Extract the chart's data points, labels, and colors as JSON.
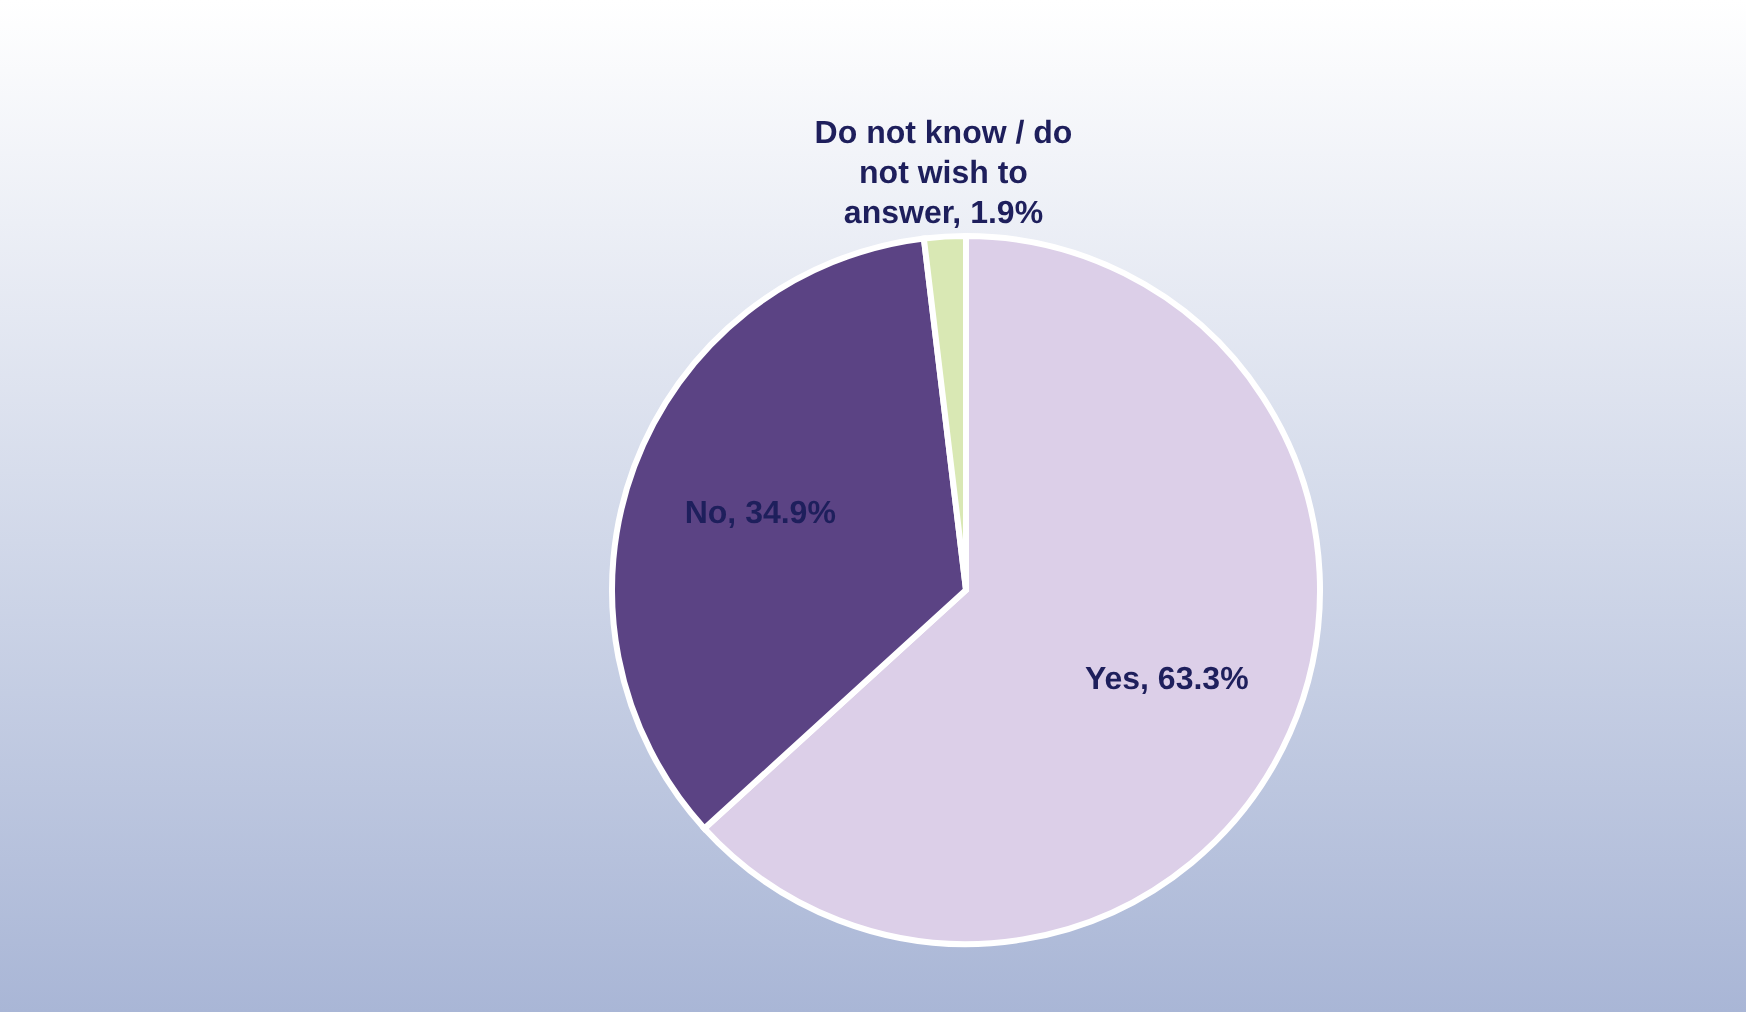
{
  "chart_data": {
    "type": "pie",
    "categories": [
      "Yes",
      "No",
      "Do not know / do not wish to answer"
    ],
    "values": [
      63.3,
      34.9,
      1.9
    ],
    "colors": [
      "#dccfe8",
      "#5b4384",
      "#d9e8b4"
    ],
    "value_labels": [
      "63.3%",
      "34.9%",
      "1.9%"
    ],
    "legend": false
  }
}
